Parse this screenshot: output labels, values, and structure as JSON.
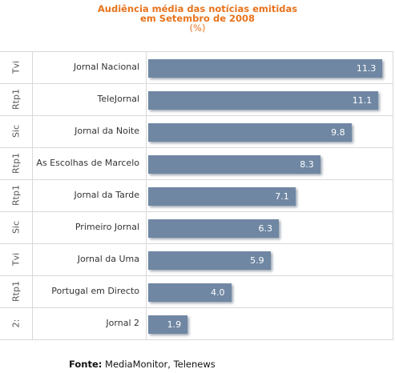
{
  "chart_data": {
    "type": "bar",
    "orientation": "horizontal",
    "title_lines": [
      "Audiência média das notícias emitidas",
      "em Setembro de 2008",
      "(%)"
    ],
    "categories": [
      "Jornal Nacional",
      "TeleJornal",
      "Jornal da Noite",
      "As Escolhas de Marcelo",
      "Jornal da Tarde",
      "Primeiro Jornal",
      "Jornal da Uma",
      "Portugal em Directo",
      "Jornal 2"
    ],
    "channels": [
      "Tvi",
      "Rtp1",
      "Sic",
      "Rtp1",
      "Rtp1",
      "Sic",
      "Tvi",
      "Rtp1",
      "2:"
    ],
    "values": [
      11.3,
      11.1,
      9.8,
      8.3,
      7.1,
      6.3,
      5.9,
      4.0,
      1.9
    ],
    "value_labels": [
      "11.3",
      "11.1",
      "9.8",
      "8.3",
      "7.1",
      "6.3",
      "5.9",
      "4.0",
      "1.9"
    ],
    "xlim": [
      0,
      11.4
    ],
    "grid": true,
    "bar_color": "#6f87a3",
    "title_color": "#e8731c"
  },
  "source": {
    "label": "Fonte:",
    "text": "MediaMonitor, Telenews"
  }
}
